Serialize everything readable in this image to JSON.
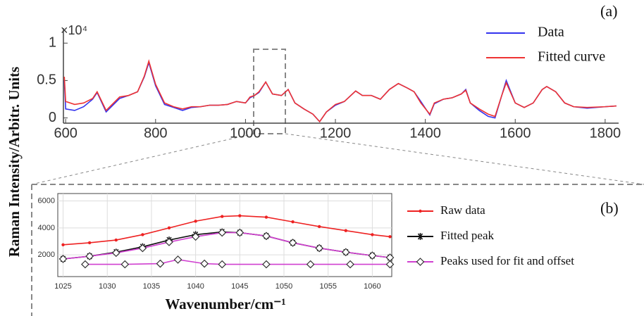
{
  "chart_data": [
    {
      "type": "line",
      "panel_label": "(a)",
      "ylabel": "Raman Intensity/Arbitr. Units",
      "y_scale_label": "×10⁴",
      "x": [
        597,
        600,
        620,
        640,
        660,
        670,
        690,
        720,
        740,
        760,
        775,
        785,
        800,
        820,
        840,
        860,
        880,
        900,
        920,
        940,
        960,
        980,
        1000,
        1010,
        1020,
        1030,
        1045,
        1060,
        1080,
        1095,
        1110,
        1130,
        1150,
        1165,
        1180,
        1200,
        1220,
        1245,
        1260,
        1280,
        1300,
        1320,
        1340,
        1360,
        1375,
        1390,
        1410,
        1420,
        1440,
        1460,
        1480,
        1490,
        1500,
        1520,
        1540,
        1555,
        1570,
        1580,
        1600,
        1620,
        1640,
        1660,
        1670,
        1690,
        1710,
        1730,
        1760,
        1800,
        1825
      ],
      "series": [
        {
          "name": "Data",
          "color": "#3333ee",
          "values": [
            0.5,
            0.12,
            0.1,
            0.15,
            0.25,
            0.34,
            0.08,
            0.26,
            0.3,
            0.35,
            0.55,
            0.74,
            0.43,
            0.18,
            0.14,
            0.1,
            0.14,
            0.15,
            0.17,
            0.17,
            0.18,
            0.22,
            0.2,
            0.27,
            0.3,
            0.34,
            0.48,
            0.32,
            0.3,
            0.38,
            0.2,
            0.12,
            0.05,
            -0.05,
            0.08,
            0.17,
            0.22,
            0.36,
            0.3,
            0.3,
            0.25,
            0.38,
            0.46,
            0.4,
            0.35,
            0.22,
            0.04,
            0.19,
            0.25,
            0.27,
            0.32,
            0.38,
            0.2,
            0.1,
            0.02,
            0.0,
            0.3,
            0.5,
            0.2,
            0.14,
            0.2,
            0.38,
            0.42,
            0.35,
            0.2,
            0.15,
            0.13,
            0.15,
            0.16
          ]
        },
        {
          "name": "Fitted curve",
          "color": "#ee3333",
          "values": [
            0.55,
            0.22,
            0.18,
            0.2,
            0.26,
            0.35,
            0.1,
            0.28,
            0.3,
            0.35,
            0.56,
            0.76,
            0.45,
            0.2,
            0.15,
            0.12,
            0.15,
            0.15,
            0.17,
            0.17,
            0.18,
            0.22,
            0.2,
            0.28,
            0.3,
            0.35,
            0.48,
            0.32,
            0.3,
            0.38,
            0.2,
            0.12,
            0.05,
            -0.05,
            0.08,
            0.18,
            0.22,
            0.36,
            0.3,
            0.3,
            0.25,
            0.38,
            0.46,
            0.4,
            0.35,
            0.2,
            0.05,
            0.2,
            0.25,
            0.27,
            0.32,
            0.37,
            0.2,
            0.12,
            0.05,
            0.02,
            0.3,
            0.47,
            0.2,
            0.14,
            0.2,
            0.38,
            0.42,
            0.35,
            0.2,
            0.15,
            0.14,
            0.15,
            0.16
          ]
        }
      ],
      "xlim": [
        595,
        1830
      ],
      "ylim": [
        -0.07,
        1.2
      ],
      "xticks": [
        600,
        800,
        1000,
        1200,
        1400,
        1600,
        1800
      ],
      "yticks": [
        0,
        0.5,
        1
      ],
      "grid": false
    },
    {
      "type": "line",
      "panel_label": "(b)",
      "xlabel": "Wavenumber/cm⁻¹",
      "x": [
        1025,
        1028,
        1031,
        1034,
        1037,
        1040,
        1043,
        1045,
        1048,
        1051,
        1054,
        1057,
        1060,
        1062
      ],
      "series": [
        {
          "name": "Raw data",
          "color": "#ee2222",
          "marker": "dot",
          "values": [
            2750,
            2900,
            3100,
            3500,
            4000,
            4500,
            4850,
            4900,
            4800,
            4450,
            4100,
            3800,
            3500,
            3350
          ]
        },
        {
          "name": "Fitted peak",
          "color": "#111111",
          "marker": "star",
          "values": [
            1700,
            1900,
            2200,
            2600,
            3100,
            3500,
            3700,
            3650,
            3400,
            2900,
            2500,
            2200,
            1950,
            1800
          ]
        },
        {
          "name": "Peaks used for fit and offset",
          "color": "#d040d0",
          "marker": "diamond",
          "values": [
            1700,
            1900,
            2150,
            2500,
            2950,
            3350,
            3650,
            3650,
            3400,
            2900,
            2500,
            2200,
            1950,
            1800
          ]
        },
        {
          "color": "#d040d0",
          "marker": "diamond",
          "x": [
            1027.5,
            1032,
            1036,
            1038,
            1041,
            1043,
            1048,
            1053,
            1057.5,
            1062
          ],
          "values": [
            1300,
            1300,
            1350,
            1650,
            1350,
            1300,
            1300,
            1300,
            1300,
            1300
          ]
        }
      ],
      "xlim": [
        1024.4,
        1062.2
      ],
      "ylim": [
        390,
        6550
      ],
      "xticks": [
        1025,
        1030,
        1035,
        1040,
        1045,
        1050,
        1055,
        1060
      ],
      "yticks": [
        2000,
        4000,
        6000
      ],
      "grid": true
    }
  ]
}
